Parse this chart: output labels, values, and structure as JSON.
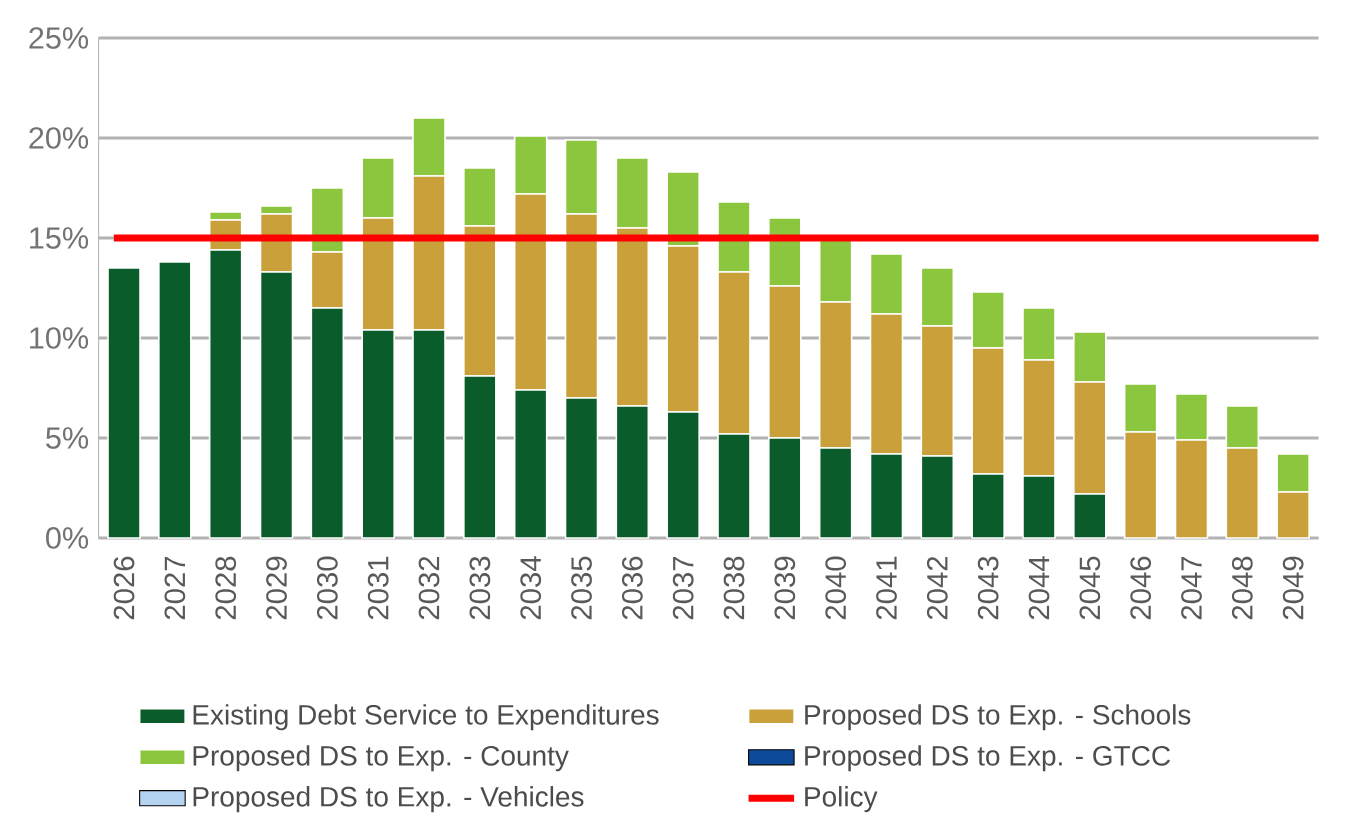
{
  "chart_data": {
    "type": "bar",
    "stacked": true,
    "categories": [
      "2026",
      "2027",
      "2028",
      "2029",
      "2030",
      "2031",
      "2032",
      "2033",
      "2034",
      "2035",
      "2036",
      "2037",
      "2038",
      "2039",
      "2040",
      "2041",
      "2042",
      "2043",
      "2044",
      "2045",
      "2046",
      "2047",
      "2048",
      "2049"
    ],
    "series": [
      {
        "name": "Existing Debt Service to Expenditures",
        "color": "#0a5c2a",
        "values": [
          13.5,
          13.8,
          14.4,
          13.3,
          11.5,
          10.4,
          10.4,
          8.1,
          7.4,
          7.0,
          6.6,
          6.3,
          5.2,
          5.0,
          4.5,
          4.2,
          4.1,
          3.2,
          3.1,
          2.2,
          null,
          null,
          null,
          null
        ]
      },
      {
        "name": "Proposed DS to Exp. - Schools",
        "color": "#c9a03a",
        "values": [
          null,
          null,
          1.5,
          2.9,
          2.8,
          5.6,
          7.7,
          7.5,
          9.8,
          9.2,
          8.9,
          8.3,
          8.1,
          7.6,
          7.3,
          7.0,
          6.5,
          6.3,
          5.8,
          5.6,
          5.3,
          4.9,
          4.5,
          2.3
        ]
      },
      {
        "name": "Proposed DS to Exp. - County",
        "color": "#8cc63f",
        "values": [
          null,
          null,
          0.4,
          0.4,
          3.2,
          3.0,
          2.9,
          2.9,
          2.9,
          3.7,
          3.5,
          3.7,
          3.5,
          3.4,
          3.1,
          3.0,
          2.9,
          2.8,
          2.6,
          2.5,
          2.4,
          2.3,
          2.1,
          1.9
        ]
      },
      {
        "name": "Proposed DS to Exp. - GTCC",
        "color": "#0e4a9a",
        "values": [
          null,
          null,
          null,
          null,
          null,
          null,
          null,
          null,
          null,
          null,
          null,
          null,
          null,
          null,
          null,
          null,
          null,
          null,
          null,
          null,
          null,
          null,
          null,
          null
        ]
      },
      {
        "name": "Proposed DS to Exp. - Vehicles",
        "color": "#b4d3f0",
        "values": [
          null,
          null,
          null,
          null,
          null,
          null,
          null,
          null,
          null,
          null,
          null,
          null,
          null,
          null,
          null,
          null,
          null,
          null,
          null,
          null,
          null,
          null,
          null,
          null
        ]
      }
    ],
    "ylim": [
      0,
      25
    ],
    "yticks": [
      {
        "value": 0,
        "label": "0%"
      },
      {
        "value": 5,
        "label": "5%"
      },
      {
        "value": 10,
        "label": "10%"
      },
      {
        "value": 15,
        "label": "15%"
      },
      {
        "value": 20,
        "label": "20%"
      },
      {
        "value": 25,
        "label": "25%"
      }
    ],
    "ref_lines": [
      {
        "axis": "y",
        "value": 15,
        "label": "Policy",
        "color": "#ff0000"
      }
    ],
    "grid": "y",
    "legend": "bottom"
  }
}
